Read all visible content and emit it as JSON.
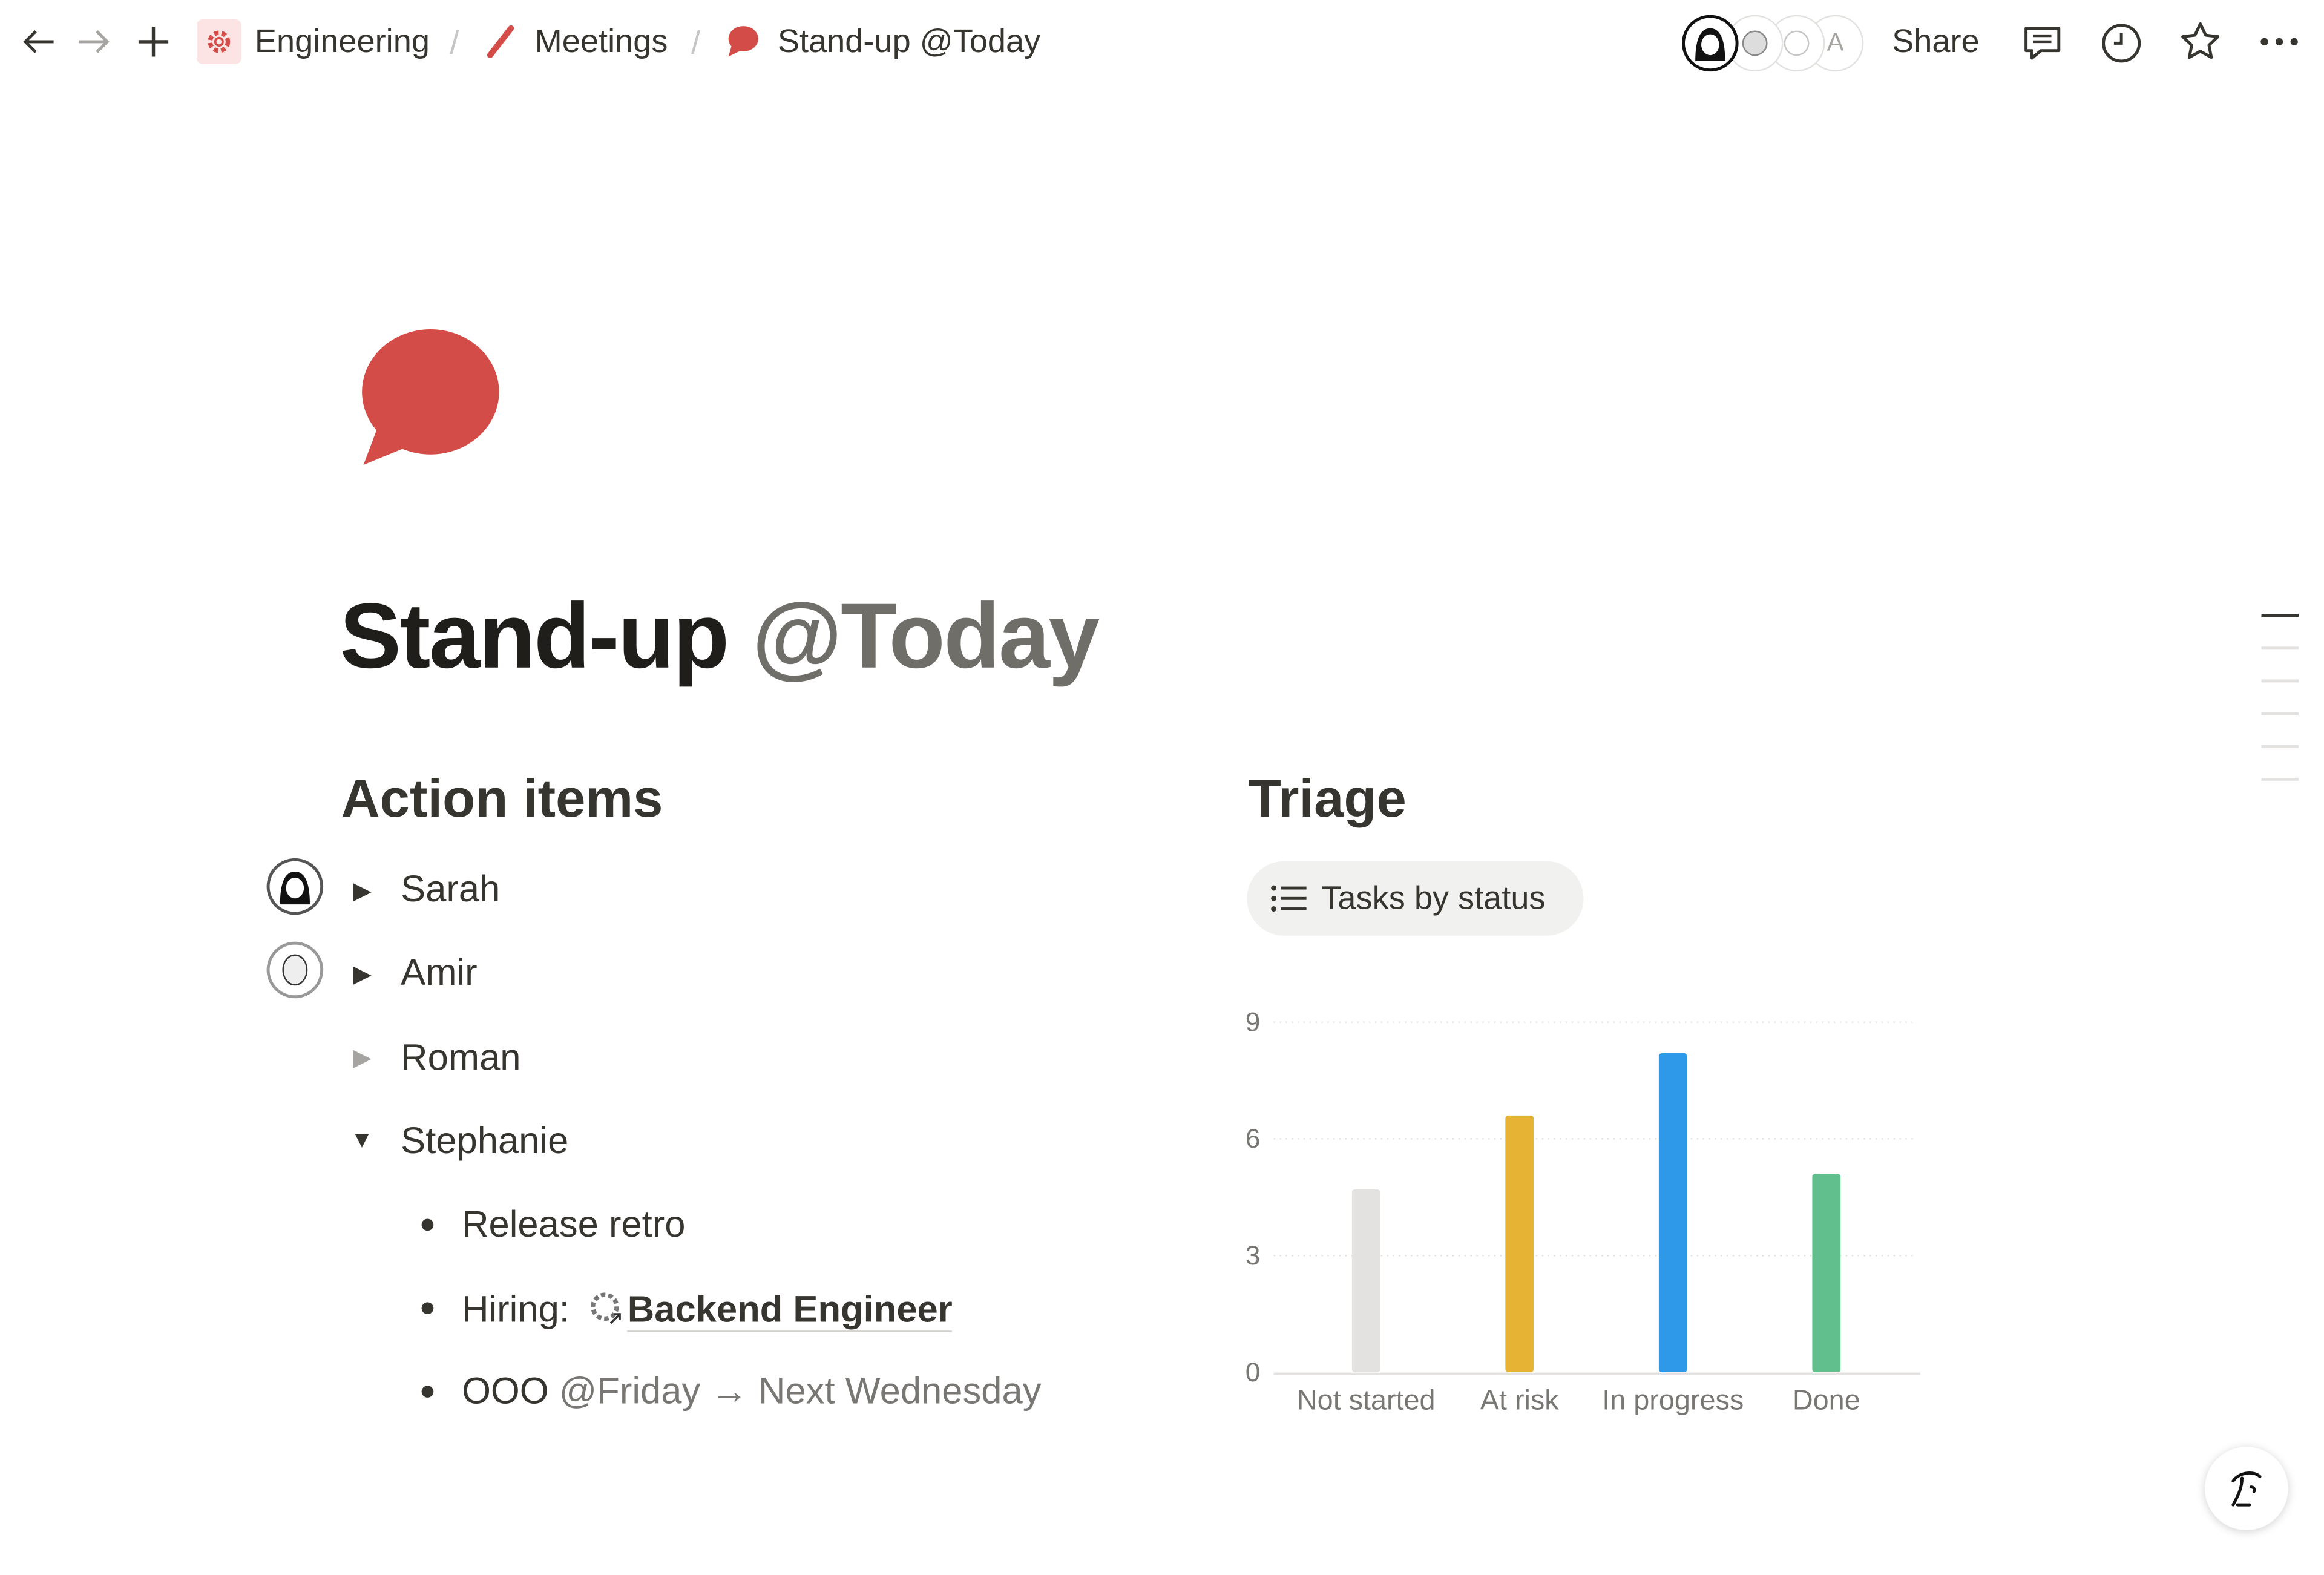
{
  "topbar": {
    "breadcrumb": [
      {
        "label": "Engineering",
        "icon": "gear-icon"
      },
      {
        "label": "Meetings",
        "icon": "pencil-icon"
      },
      {
        "label": "Stand-up @Today",
        "icon": "speech-bubble-icon"
      }
    ],
    "separator": "/",
    "avatar_initial": "A",
    "share_label": "Share"
  },
  "page": {
    "title": "Stand-up",
    "title_mention": "@Today",
    "accent": "#d44c47"
  },
  "action_items": {
    "heading": "Action items",
    "people": [
      {
        "name": "Sarah",
        "state": "collapsed"
      },
      {
        "name": "Amir",
        "state": "collapsed"
      },
      {
        "name": "Roman",
        "state": "collapsed-empty"
      },
      {
        "name": "Stephanie",
        "state": "expanded"
      }
    ],
    "stephanie_items": {
      "item1": "Release retro",
      "hiring_prefix": "Hiring:",
      "hiring_link": "Backend Engineer",
      "ooo": "OOO",
      "ooo_date": "@Friday",
      "arrow": "→",
      "ooo_return": "Next Wednesday"
    }
  },
  "triage": {
    "heading": "Triage",
    "view_label": "Tasks by status"
  },
  "chart_data": {
    "type": "bar",
    "categories": [
      "Not started",
      "At risk",
      "In progress",
      "Done"
    ],
    "values": [
      4.7,
      6.6,
      8.2,
      5.1
    ],
    "colors": [
      "#e3e2e0",
      "#e6b335",
      "#2e98e9",
      "#60bf8c"
    ],
    "yticks": [
      0,
      3,
      6,
      9
    ],
    "ylim": [
      0,
      9
    ],
    "grid": true
  }
}
